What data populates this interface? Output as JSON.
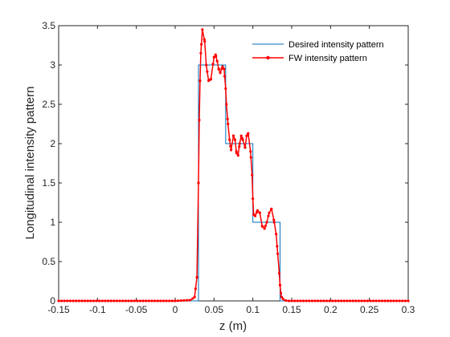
{
  "chart_data": {
    "type": "line",
    "title": "",
    "xlabel": "z (m)",
    "ylabel": "Longitudinal intensity pattern",
    "xlim": [
      -0.15,
      0.3
    ],
    "ylim": [
      0,
      3.5
    ],
    "xticks": [
      -0.15,
      -0.1,
      -0.05,
      0,
      0.05,
      0.1,
      0.15,
      0.2,
      0.25,
      0.3
    ],
    "xtick_labels": [
      "-0.15",
      "-0.1",
      "-0.05",
      "0",
      "0.05",
      "0.1",
      "0.15",
      "0.2",
      "0.25",
      "0.3"
    ],
    "yticks": [
      0,
      0.5,
      1,
      1.5,
      2,
      2.5,
      3,
      3.5
    ],
    "ytick_labels": [
      "0",
      "0.5",
      "1",
      "1.5",
      "2",
      "2.5",
      "3",
      "3.5"
    ],
    "grid": false,
    "legend_position": "top-right",
    "series": [
      {
        "name": "Desired intensity pattern",
        "color": "#0072BD",
        "marker": "none",
        "x": [
          -0.15,
          0.03,
          0.03,
          0.065,
          0.065,
          0.1,
          0.1,
          0.135,
          0.135,
          0.3
        ],
        "y": [
          0,
          0,
          3,
          3,
          2,
          2,
          1,
          1,
          0,
          0
        ]
      },
      {
        "name": "FW intensity pattern",
        "color": "#FF0000",
        "marker": "dot",
        "x": [
          -0.15,
          0.0,
          0.02,
          0.025,
          0.028,
          0.03,
          0.031,
          0.032,
          0.033,
          0.035,
          0.038,
          0.04,
          0.043,
          0.046,
          0.05,
          0.052,
          0.054,
          0.056,
          0.058,
          0.061,
          0.063,
          0.065,
          0.066,
          0.068,
          0.07,
          0.072,
          0.075,
          0.077,
          0.079,
          0.081,
          0.083,
          0.085,
          0.087,
          0.09,
          0.092,
          0.094,
          0.097,
          0.099,
          0.1,
          0.101,
          0.103,
          0.106,
          0.109,
          0.112,
          0.115,
          0.118,
          0.121,
          0.124,
          0.127,
          0.13,
          0.132,
          0.134,
          0.135,
          0.136,
          0.137,
          0.14,
          0.145,
          0.15,
          0.3
        ],
        "y": [
          0,
          0,
          0.01,
          0.05,
          0.3,
          1.5,
          2.3,
          2.8,
          3.15,
          3.45,
          3.3,
          3.0,
          2.8,
          2.82,
          3.1,
          3.13,
          3.05,
          2.95,
          2.9,
          2.98,
          2.95,
          2.7,
          2.5,
          2.25,
          2.05,
          1.92,
          2.1,
          2.05,
          1.88,
          1.85,
          2.0,
          2.1,
          2.05,
          1.95,
          2.1,
          2.13,
          1.9,
          1.6,
          1.3,
          1.1,
          1.08,
          1.15,
          1.12,
          0.95,
          0.92,
          1.0,
          1.12,
          1.17,
          1.03,
          0.85,
          0.6,
          0.35,
          0.2,
          0.1,
          0.05,
          0.01,
          0,
          0,
          0
        ]
      }
    ]
  }
}
